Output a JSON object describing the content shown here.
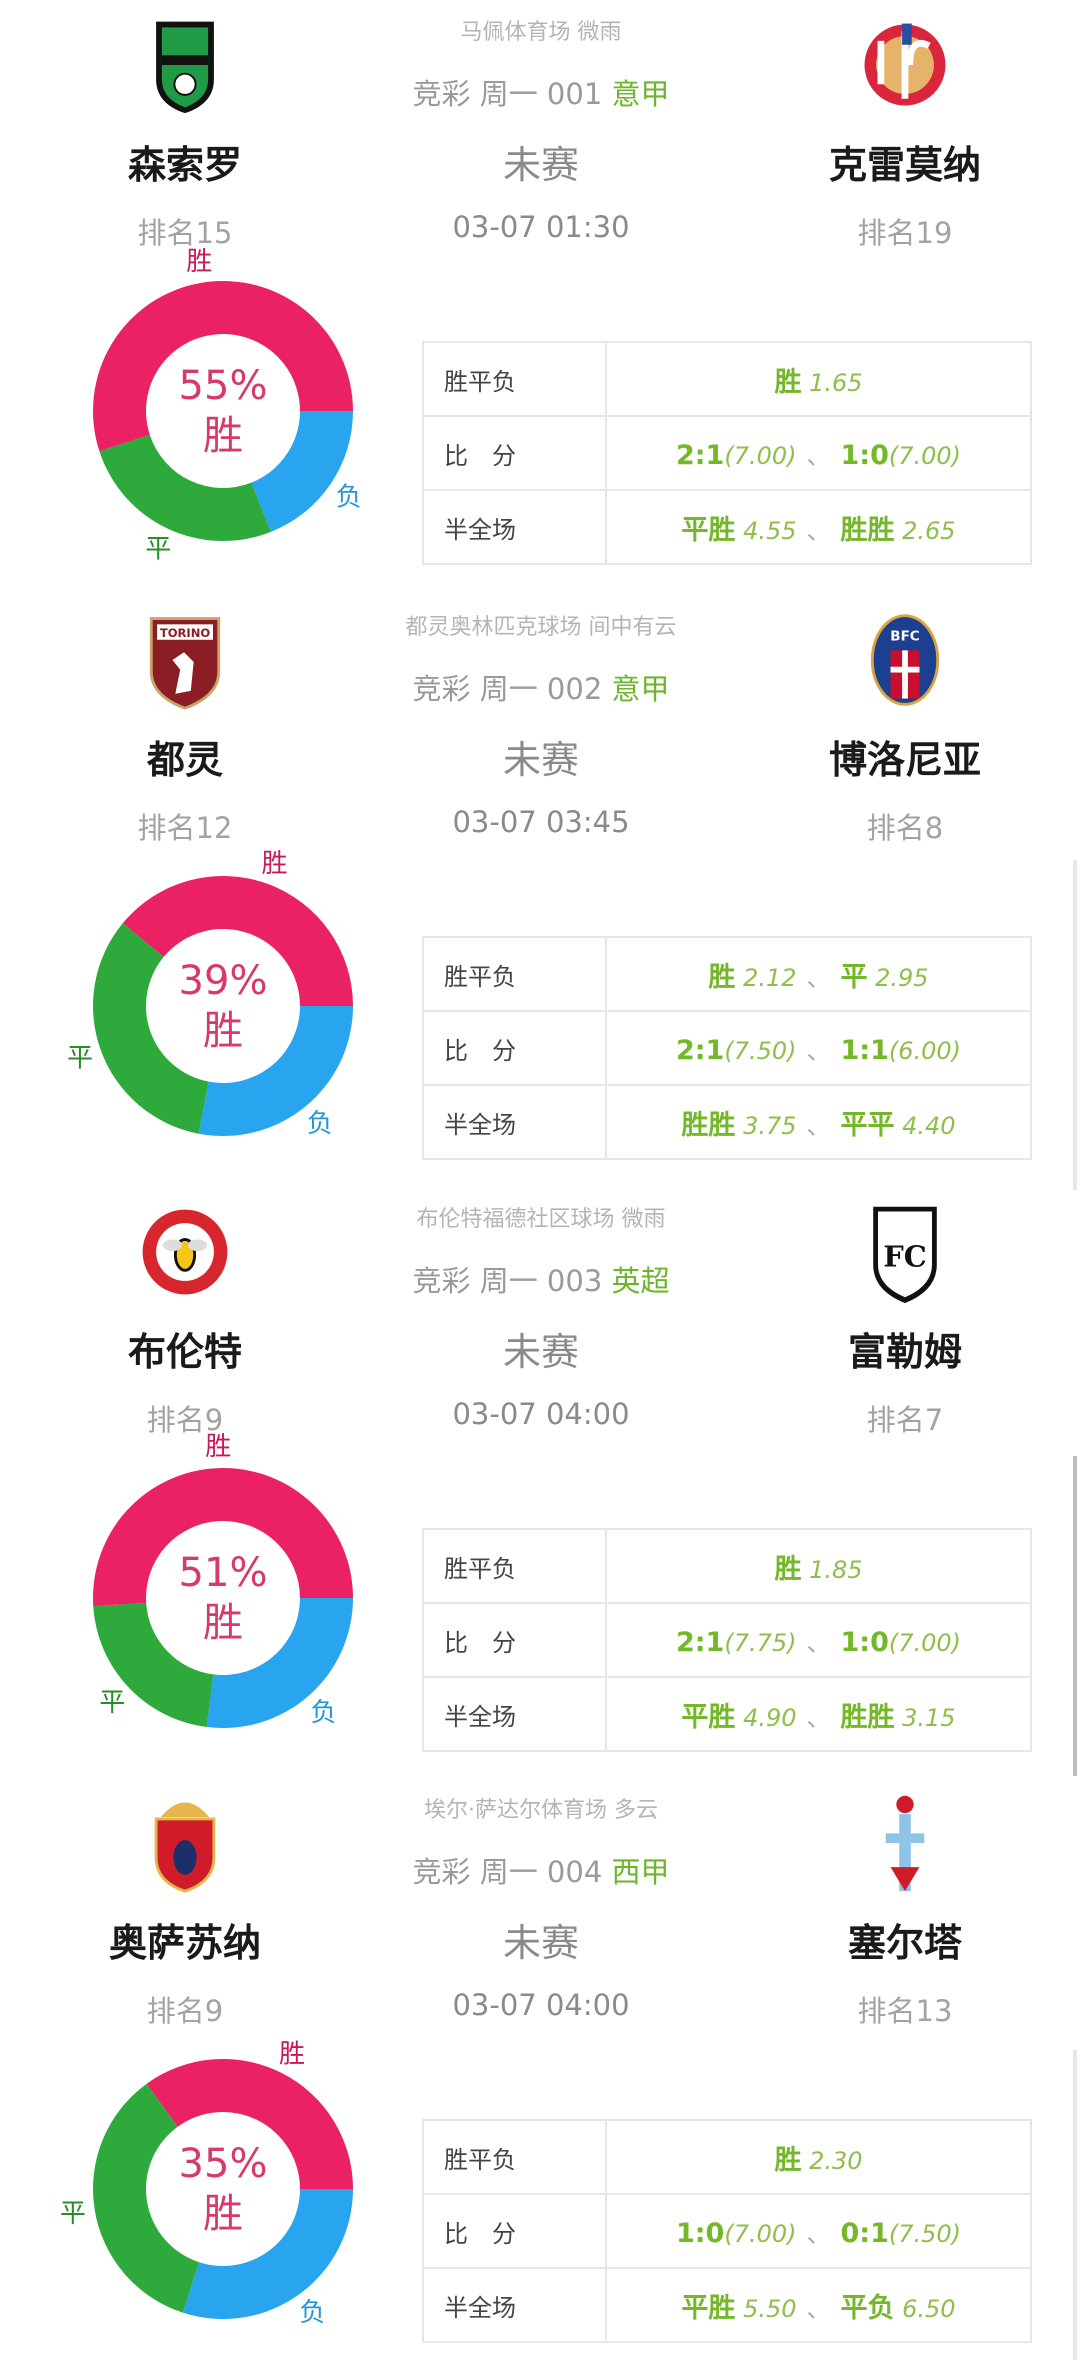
{
  "colors": {
    "win": "#ea2163",
    "draw": "#2eaa3c",
    "lose": "#28a5ee",
    "league": "#6cb52c",
    "odds_green": "#7cbb2c"
  },
  "table_labels": [
    "胜平负",
    "比　分",
    "半全场"
  ],
  "slice_labels": {
    "win": "胜",
    "draw": "平",
    "lose": "负"
  },
  "matches": [
    {
      "venue": "马佩体育场 微雨",
      "lottery": "竞彩 周一 001",
      "league": "意甲",
      "home": {
        "name": "森索罗",
        "rank": "排名15",
        "logo": "sassuolo-logo"
      },
      "away": {
        "name": "克雷莫纳",
        "rank": "排名19",
        "logo": "cremonese-logo"
      },
      "status": "未赛",
      "time": "03-07 01:30",
      "prediction": {
        "percent_text": "55%",
        "result": "胜",
        "win": 55,
        "draw": 26,
        "lose": 19
      },
      "odds": [
        [
          {
            "pick": "胜",
            "odds": "1.65"
          }
        ],
        [
          {
            "pick": "2:1",
            "odds": "(7.00)"
          },
          {
            "pick": "1:0",
            "odds": "(7.00)"
          }
        ],
        [
          {
            "pick": "平胜",
            "odds": "4.55"
          },
          {
            "pick": "胜胜",
            "odds": "2.65"
          }
        ]
      ]
    },
    {
      "venue": "都灵奥林匹克球场 间中有云",
      "lottery": "竞彩 周一 002",
      "league": "意甲",
      "home": {
        "name": "都灵",
        "rank": "排名12",
        "logo": "torino-logo"
      },
      "away": {
        "name": "博洛尼亚",
        "rank": "排名8",
        "logo": "bologna-logo"
      },
      "status": "未赛",
      "time": "03-07 03:45",
      "prediction": {
        "percent_text": "39%",
        "result": "胜",
        "win": 39,
        "draw": 33,
        "lose": 28
      },
      "odds": [
        [
          {
            "pick": "胜",
            "odds": "2.12"
          },
          {
            "pick": "平",
            "odds": "2.95"
          }
        ],
        [
          {
            "pick": "2:1",
            "odds": "(7.50)"
          },
          {
            "pick": "1:1",
            "odds": "(6.00)"
          }
        ],
        [
          {
            "pick": "胜胜",
            "odds": "3.75"
          },
          {
            "pick": "平平",
            "odds": "4.40"
          }
        ]
      ]
    },
    {
      "venue": "布伦特福德社区球场 微雨",
      "lottery": "竞彩 周一 003",
      "league": "英超",
      "home": {
        "name": "布伦特",
        "rank": "排名9",
        "logo": "brentford-logo"
      },
      "away": {
        "name": "富勒姆",
        "rank": "排名7",
        "logo": "fulham-logo"
      },
      "status": "未赛",
      "time": "03-07 04:00",
      "prediction": {
        "percent_text": "51%",
        "result": "胜",
        "win": 51,
        "draw": 22,
        "lose": 27
      },
      "odds": [
        [
          {
            "pick": "胜",
            "odds": "1.85"
          }
        ],
        [
          {
            "pick": "2:1",
            "odds": "(7.75)"
          },
          {
            "pick": "1:0",
            "odds": "(7.00)"
          }
        ],
        [
          {
            "pick": "平胜",
            "odds": "4.90"
          },
          {
            "pick": "胜胜",
            "odds": "3.15"
          }
        ]
      ]
    },
    {
      "venue": "埃尔·萨达尔体育场 多云",
      "lottery": "竞彩 周一 004",
      "league": "西甲",
      "home": {
        "name": "奥萨苏纳",
        "rank": "排名9",
        "logo": "osasuna-logo"
      },
      "away": {
        "name": "塞尔塔",
        "rank": "排名13",
        "logo": "celta-logo"
      },
      "status": "未赛",
      "time": "03-07 04:00",
      "prediction": {
        "percent_text": "35%",
        "result": "胜",
        "win": 35,
        "draw": 35,
        "lose": 30
      },
      "odds": [
        [
          {
            "pick": "胜",
            "odds": "2.30"
          }
        ],
        [
          {
            "pick": "1:0",
            "odds": "(7.00)"
          },
          {
            "pick": "0:1",
            "odds": "(7.50)"
          }
        ],
        [
          {
            "pick": "平胜",
            "odds": "5.50"
          },
          {
            "pick": "平负",
            "odds": "6.50"
          }
        ]
      ]
    }
  ]
}
